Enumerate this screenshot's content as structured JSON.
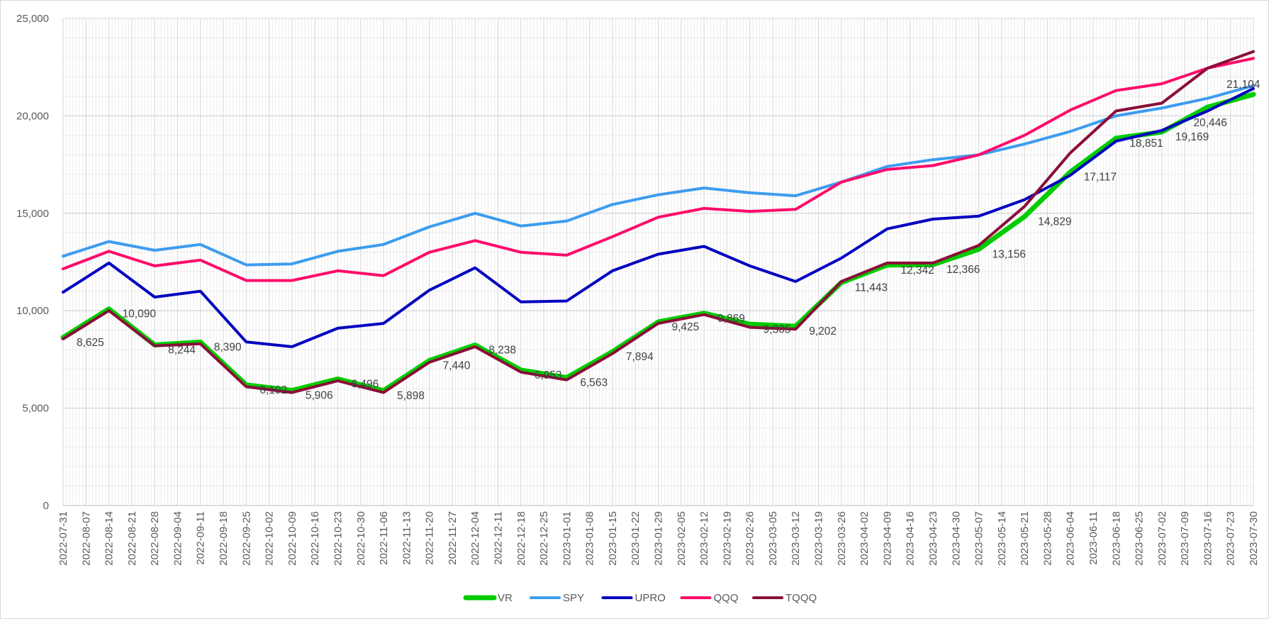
{
  "chart_data": {
    "type": "line",
    "title": "",
    "xlabel": "",
    "ylabel": "",
    "ylim": [
      0,
      25000
    ],
    "y_ticks": [
      0,
      5000,
      10000,
      15000,
      20000,
      25000
    ],
    "y_tick_labels": [
      "0",
      "5,000",
      "10,000",
      "15,000",
      "20,000",
      "25,000"
    ],
    "grid": true,
    "legend": "bottom",
    "x": [
      "2022-07-31",
      "2022-08-07",
      "2022-08-14",
      "2022-08-21",
      "2022-08-28",
      "2022-09-04",
      "2022-09-11",
      "2022-09-18",
      "2022-09-25",
      "2022-10-02",
      "2022-10-09",
      "2022-10-16",
      "2022-10-23",
      "2022-10-30",
      "2022-11-06",
      "2022-11-13",
      "2022-11-20",
      "2022-11-27",
      "2022-12-04",
      "2022-12-11",
      "2022-12-18",
      "2022-12-25",
      "2023-01-01",
      "2023-01-08",
      "2023-01-15",
      "2023-01-22",
      "2023-01-29",
      "2023-02-05",
      "2023-02-12",
      "2023-02-19",
      "2023-02-26",
      "2023-03-05",
      "2023-03-12",
      "2023-03-19",
      "2023-03-26",
      "2023-04-02",
      "2023-04-09",
      "2023-04-16",
      "2023-04-23",
      "2023-04-30",
      "2023-05-07",
      "2023-05-14",
      "2023-05-21",
      "2023-05-28",
      "2023-06-04",
      "2023-06-11",
      "2023-06-18",
      "2023-06-25",
      "2023-07-02",
      "2023-07-09",
      "2023-07-16",
      "2023-07-23",
      "2023-07-30"
    ],
    "series": [
      {
        "name": "VR",
        "color": "#00cc00",
        "width": 7,
        "values": [
          8625,
          null,
          10090,
          null,
          8244,
          null,
          8390,
          null,
          6192,
          null,
          5906,
          null,
          6496,
          null,
          5898,
          null,
          7440,
          null,
          8238,
          null,
          6953,
          null,
          6563,
          null,
          7894,
          null,
          9425,
          null,
          9869,
          null,
          9305,
          null,
          9202,
          null,
          11443,
          null,
          12342,
          null,
          12366,
          null,
          13156,
          null,
          14829,
          null,
          17117,
          null,
          18851,
          null,
          19169,
          null,
          20446,
          null,
          21104
        ],
        "labels": [
          "8,625",
          null,
          "10,090",
          null,
          "8,244",
          null,
          "8,390",
          null,
          "6,192",
          null,
          "5,906",
          null,
          "6,496",
          null,
          "5,898",
          null,
          "7,440",
          null,
          "8,238",
          null,
          "6,953",
          null,
          "6,563",
          null,
          "7,894",
          null,
          "9,425",
          null,
          "9,869",
          null,
          "9,305",
          null,
          "9,202",
          null,
          "11,443",
          null,
          "12,342",
          null,
          "12,366",
          null,
          "13,156",
          null,
          "14,829",
          null,
          "17,117",
          null,
          "18,851",
          null,
          "19,169",
          null,
          "20,446",
          null,
          "21,104"
        ]
      },
      {
        "name": "SPY",
        "color": "#3d9cf0",
        "width": 4,
        "values": [
          12800,
          null,
          13550,
          null,
          13100,
          null,
          13400,
          null,
          12350,
          null,
          12400,
          null,
          13050,
          null,
          13400,
          null,
          14300,
          null,
          15000,
          null,
          14350,
          null,
          14600,
          null,
          15450,
          null,
          15950,
          null,
          16300,
          null,
          16050,
          null,
          15900,
          null,
          16600,
          null,
          17400,
          null,
          17750,
          null,
          18000,
          null,
          18550,
          null,
          19200,
          null,
          20000,
          null,
          20400,
          null,
          20900,
          null,
          21550
        ]
      },
      {
        "name": "UPRO",
        "color": "#0000c0",
        "width": 4,
        "values": [
          10950,
          null,
          12450,
          null,
          10700,
          null,
          11000,
          null,
          8400,
          null,
          8150,
          null,
          9100,
          null,
          9350,
          null,
          11050,
          null,
          12200,
          null,
          10450,
          null,
          10500,
          null,
          12050,
          null,
          12900,
          null,
          13300,
          null,
          12300,
          null,
          11500,
          null,
          12700,
          null,
          14200,
          null,
          14700,
          null,
          14850,
          null,
          15700,
          null,
          16950,
          null,
          18700,
          null,
          19250,
          null,
          20250,
          null,
          21400
        ]
      },
      {
        "name": "QQQ",
        "color": "#ff0a6a",
        "width": 4,
        "values": [
          12150,
          null,
          13050,
          null,
          12300,
          null,
          12600,
          null,
          11550,
          null,
          11550,
          null,
          12050,
          null,
          11800,
          null,
          13000,
          null,
          13600,
          null,
          13000,
          null,
          12850,
          null,
          13800,
          null,
          14800,
          null,
          15250,
          null,
          15100,
          null,
          15200,
          null,
          16600,
          null,
          17250,
          null,
          17450,
          null,
          18000,
          null,
          19000,
          null,
          20300,
          null,
          21300,
          null,
          21650,
          null,
          22450,
          null,
          22950
        ]
      },
      {
        "name": "TQQQ",
        "color": "#8b0d3a",
        "width": 4,
        "values": [
          8550,
          null,
          10000,
          null,
          8200,
          null,
          8300,
          null,
          6100,
          null,
          5800,
          null,
          6400,
          null,
          5800,
          null,
          7350,
          null,
          8150,
          null,
          6850,
          null,
          6450,
          null,
          7800,
          null,
          9350,
          null,
          9800,
          null,
          9150,
          null,
          9050,
          null,
          11500,
          null,
          12450,
          null,
          12450,
          null,
          13350,
          null,
          15350,
          null,
          18100,
          null,
          20250,
          null,
          20650,
          null,
          22450,
          null,
          23300
        ]
      }
    ]
  }
}
